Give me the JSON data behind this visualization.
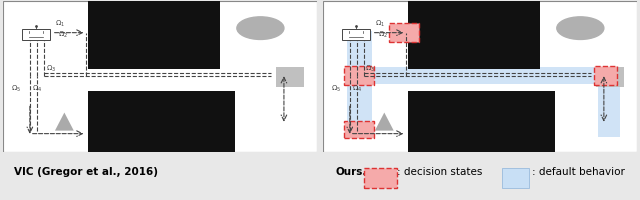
{
  "bg_color": "#e8e8e8",
  "panel_bg": "#ffffff",
  "black_color": "#111111",
  "gray_circle": "#b0b0b0",
  "gray_rect": "#c0c0c0",
  "gray_triangle": "#aaaaaa",
  "dashed_color": "#333333",
  "red_fill": "#f5aaaa",
  "red_edge": "#dd3333",
  "blue_fill": "#c8dff5",
  "label_left": "VIC (Gregor et al., 2016)",
  "label_right": "Ours.",
  "legend_decision": ": decision states",
  "legend_default": ": default behavior",
  "fig_width": 6.4,
  "fig_height": 2.01
}
